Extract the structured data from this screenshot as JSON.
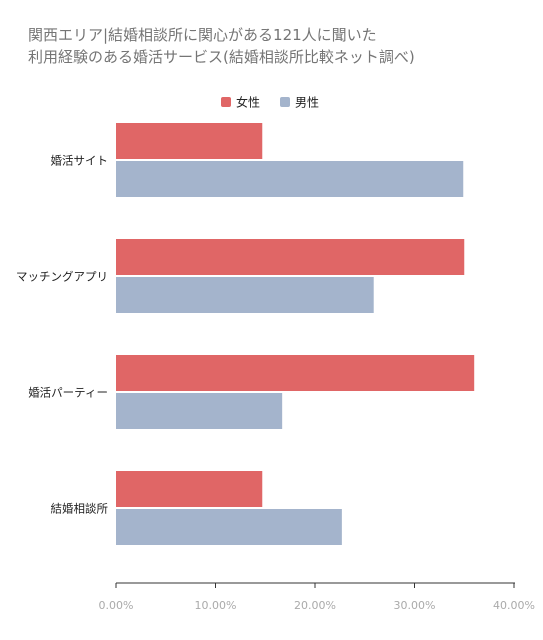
{
  "chart_data": {
    "type": "bar",
    "orientation": "horizontal",
    "title_lines": [
      "関西エリア|結婚相談所に関心がある121人に聞いた",
      "利用経験のある婚活サービス(結婚相談所比較ネット調べ)"
    ],
    "categories": [
      "婚活サイト",
      "マッチングアプリ",
      "婚活パーティー",
      "結婚相談所"
    ],
    "series": [
      {
        "name": "女性",
        "color": "#e06666",
        "values": [
          0.147,
          0.35,
          0.36,
          0.147
        ]
      },
      {
        "name": "男性",
        "color": "#a4b4cc",
        "values": [
          0.349,
          0.259,
          0.167,
          0.227
        ]
      }
    ],
    "xlim": [
      0,
      0.4
    ],
    "xticks": [
      "0.00%",
      "10.00%",
      "20.00%",
      "30.00%",
      "40.00%"
    ],
    "legend_position": "top-center",
    "grid": false,
    "colors": {
      "axis_line": "#333333",
      "tick_label": "#aaaaaa",
      "category_label": "#222222",
      "legend_label": "#222222",
      "title": "#757575"
    }
  }
}
